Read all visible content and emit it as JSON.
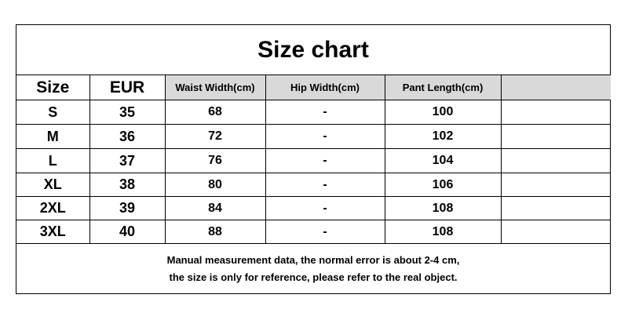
{
  "title": "Size chart",
  "headers": [
    "Size",
    "EUR",
    "Waist Width(cm)",
    "Hip Width(cm)",
    "Pant Length(cm)",
    ""
  ],
  "rows": [
    [
      "S",
      "35",
      "68",
      "-",
      "100"
    ],
    [
      "M",
      "36",
      "72",
      "-",
      "102"
    ],
    [
      "L",
      "37",
      "76",
      "-",
      "104"
    ],
    [
      "XL",
      "38",
      "80",
      "-",
      "106"
    ],
    [
      "2XL",
      "39",
      "84",
      "-",
      "108"
    ],
    [
      "3XL",
      "40",
      "88",
      "-",
      "108"
    ]
  ],
  "footer": [
    "Manual measurement data, the normal error is about 2-4 cm,",
    "the size is only for reference, please refer to the real object."
  ],
  "colors": {
    "header_fill": "#d9d9d9",
    "border": "#000000"
  }
}
